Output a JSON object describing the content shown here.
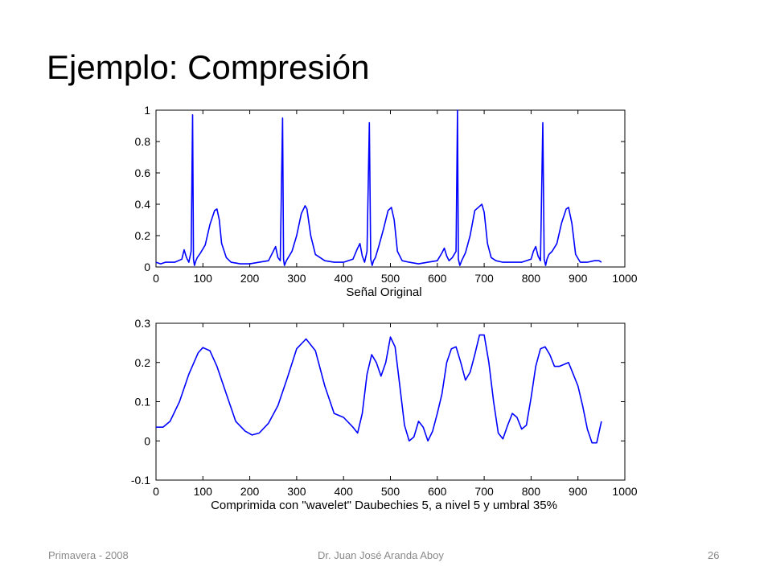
{
  "slide": {
    "title": "Ejemplo: Compresión",
    "footer_left": "Primavera - 2008",
    "footer_center": "Dr. Juan José Aranda Aboy",
    "page_number": "26"
  },
  "colors": {
    "line": "#0000ff",
    "axis": "#000000",
    "background": "#ffffff"
  },
  "chart_data": [
    {
      "type": "line",
      "title": "",
      "xlabel": "Señal Original",
      "ylabel": "",
      "xlim": [
        0,
        1000
      ],
      "ylim": [
        0,
        1
      ],
      "xticks": [
        0,
        100,
        200,
        300,
        400,
        500,
        600,
        700,
        800,
        900,
        1000
      ],
      "xtick_labels": [
        "0",
        "100",
        "200",
        "300",
        "400",
        "500",
        "600",
        "700",
        "800",
        "900",
        "1000"
      ],
      "yticks": [
        0,
        0.2,
        0.4,
        0.6,
        0.8,
        1
      ],
      "ytick_labels": [
        "0",
        "0.2",
        "0.4",
        "0.6",
        "0.8",
        "1"
      ],
      "grid": false,
      "series": [
        {
          "x": [
            0,
            10,
            20,
            40,
            55,
            60,
            65,
            70,
            75,
            78,
            80,
            82,
            85,
            88,
            95,
            105,
            115,
            125,
            130,
            135,
            140,
            150,
            160,
            180,
            200,
            220,
            240,
            250,
            255,
            260,
            265,
            270,
            272,
            274,
            278,
            282,
            290,
            300,
            310,
            318,
            322,
            330,
            340,
            360,
            380,
            400,
            420,
            430,
            435,
            440,
            445,
            450,
            455,
            458,
            461,
            464,
            468,
            475,
            485,
            495,
            502,
            508,
            515,
            525,
            540,
            560,
            580,
            600,
            610,
            615,
            620,
            625,
            632,
            640,
            643,
            645,
            648,
            652,
            660,
            670,
            680,
            695,
            700,
            707,
            715,
            725,
            740,
            760,
            780,
            800,
            805,
            810,
            815,
            820,
            825,
            828,
            831,
            834,
            838,
            845,
            855,
            865,
            875,
            880,
            887,
            895,
            905,
            920,
            935,
            945,
            950
          ],
          "y": [
            0.03,
            0.02,
            0.03,
            0.03,
            0.05,
            0.11,
            0.06,
            0.03,
            0.1,
            0.97,
            0.05,
            0.01,
            0.04,
            0.06,
            0.09,
            0.14,
            0.27,
            0.36,
            0.37,
            0.3,
            0.15,
            0.06,
            0.03,
            0.02,
            0.02,
            0.03,
            0.04,
            0.1,
            0.13,
            0.06,
            0.04,
            0.95,
            0.05,
            0.01,
            0.04,
            0.06,
            0.1,
            0.2,
            0.34,
            0.39,
            0.37,
            0.2,
            0.08,
            0.04,
            0.03,
            0.03,
            0.05,
            0.12,
            0.15,
            0.07,
            0.03,
            0.1,
            0.92,
            0.05,
            0.01,
            0.04,
            0.06,
            0.13,
            0.24,
            0.36,
            0.38,
            0.3,
            0.1,
            0.04,
            0.03,
            0.02,
            0.03,
            0.04,
            0.09,
            0.12,
            0.07,
            0.04,
            0.06,
            0.1,
            1.0,
            0.05,
            0.01,
            0.04,
            0.09,
            0.2,
            0.36,
            0.4,
            0.35,
            0.15,
            0.06,
            0.04,
            0.03,
            0.03,
            0.03,
            0.05,
            0.1,
            0.13,
            0.07,
            0.04,
            0.92,
            0.05,
            0.01,
            0.05,
            0.08,
            0.1,
            0.15,
            0.28,
            0.37,
            0.38,
            0.28,
            0.08,
            0.03,
            0.03,
            0.04,
            0.04,
            0.03
          ]
        }
      ]
    },
    {
      "type": "line",
      "title": "",
      "xlabel": "Comprimida con \"wavelet\" Daubechies 5, a nivel 5 y umbral 35%",
      "ylabel": "",
      "xlim": [
        0,
        1000
      ],
      "ylim": [
        -0.1,
        0.3
      ],
      "xticks": [
        0,
        100,
        200,
        300,
        400,
        500,
        600,
        700,
        800,
        900,
        1000
      ],
      "xtick_labels": [
        "0",
        "100",
        "200",
        "300",
        "400",
        "500",
        "600",
        "700",
        "800",
        "900",
        "1000"
      ],
      "yticks": [
        -0.1,
        0,
        0.1,
        0.2,
        0.3
      ],
      "ytick_labels": [
        "-0.1",
        "0",
        "0.1",
        "0.2",
        "0.3"
      ],
      "grid": false,
      "series": [
        {
          "x": [
            0,
            15,
            30,
            50,
            70,
            90,
            100,
            115,
            130,
            150,
            170,
            190,
            205,
            220,
            240,
            260,
            280,
            300,
            320,
            340,
            360,
            380,
            400,
            420,
            430,
            440,
            450,
            460,
            470,
            480,
            490,
            500,
            510,
            520,
            530,
            540,
            550,
            560,
            570,
            580,
            590,
            600,
            610,
            620,
            630,
            640,
            650,
            660,
            670,
            680,
            690,
            700,
            710,
            720,
            730,
            740,
            750,
            760,
            770,
            780,
            790,
            800,
            810,
            820,
            830,
            840,
            850,
            860,
            870,
            880,
            890,
            900,
            910,
            920,
            930,
            940,
            950
          ],
          "y": [
            0.035,
            0.035,
            0.05,
            0.1,
            0.17,
            0.225,
            0.238,
            0.23,
            0.19,
            0.12,
            0.05,
            0.025,
            0.015,
            0.02,
            0.045,
            0.09,
            0.16,
            0.235,
            0.26,
            0.23,
            0.14,
            0.07,
            0.06,
            0.035,
            0.02,
            0.07,
            0.17,
            0.22,
            0.2,
            0.165,
            0.2,
            0.265,
            0.24,
            0.14,
            0.04,
            0.0,
            0.01,
            0.05,
            0.035,
            0.0,
            0.025,
            0.07,
            0.12,
            0.2,
            0.235,
            0.24,
            0.2,
            0.155,
            0.175,
            0.22,
            0.27,
            0.27,
            0.2,
            0.1,
            0.02,
            0.005,
            0.04,
            0.07,
            0.06,
            0.03,
            0.04,
            0.11,
            0.19,
            0.235,
            0.24,
            0.22,
            0.19,
            0.19,
            0.195,
            0.2,
            0.17,
            0.14,
            0.09,
            0.03,
            -0.005,
            -0.005,
            0.05
          ]
        }
      ]
    }
  ]
}
